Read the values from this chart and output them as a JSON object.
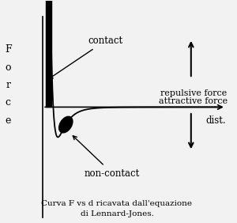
{
  "title_line1": "Curva F vs d ricavata dall'equazione",
  "title_line2": "di Lennard-Jones.",
  "ylabel": "F\no\nr\nc\ne",
  "xlabel": "dist.",
  "label_contact": "contact",
  "label_noncontact": "non-contact",
  "label_repulsive": "repulsive force",
  "label_attractive": "attractive force",
  "bg_color": "#f0f0f0",
  "curve_color": "#000000",
  "axis_color": "#000000",
  "text_color": "#000000",
  "title_fontsize": 8.5,
  "label_fontsize": 8.5,
  "axis_label_fontsize": 9
}
